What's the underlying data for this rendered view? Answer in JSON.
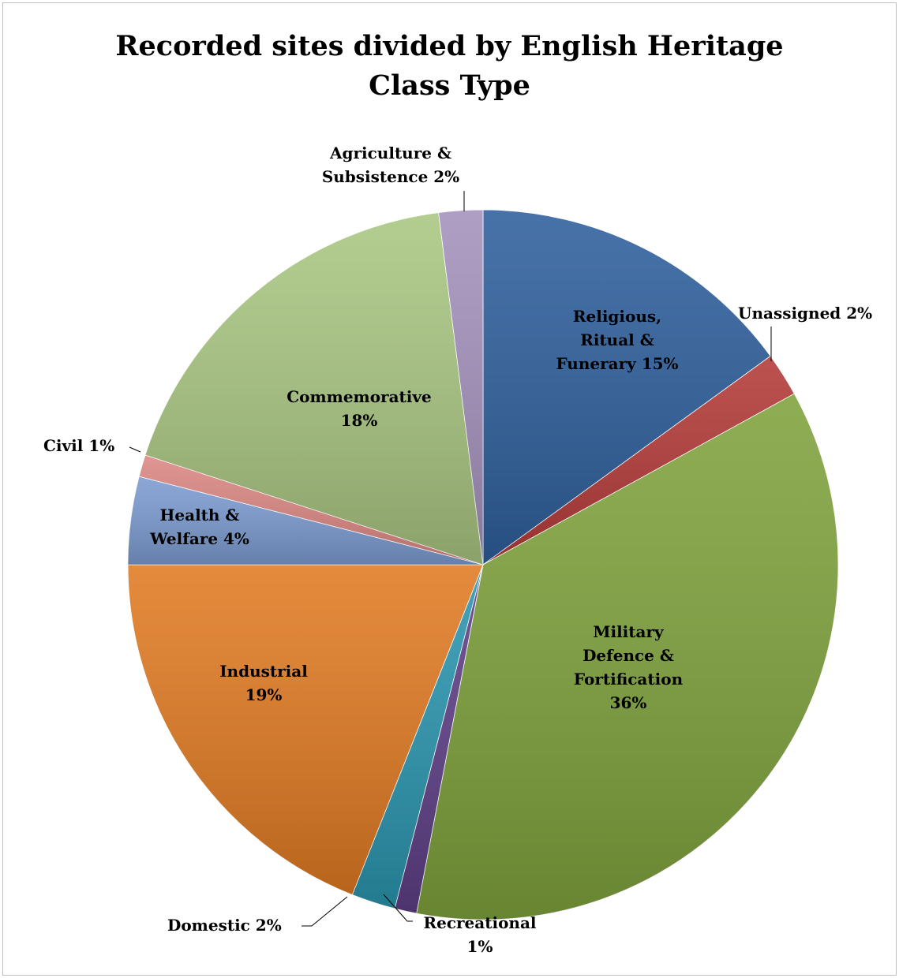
{
  "chart_data": {
    "type": "pie",
    "title": "Recorded sites divided by English Heritage Class Type",
    "title_lines": [
      "Recorded sites divided by English Heritage",
      "Class Type"
    ],
    "slices": [
      {
        "name": "Religious, Ritual & Funerary",
        "value": 15,
        "label_lines": [
          "Religious,",
          "Ritual &",
          "Funerary 15%"
        ],
        "color": "#2E5F9C"
      },
      {
        "name": "Unassigned",
        "value": 2,
        "label_lines": [
          "Unassigned 2%"
        ],
        "color": "#B33A38"
      },
      {
        "name": "Military Defence & Fortification",
        "value": 36,
        "label_lines": [
          "Military",
          "Defence &",
          "Fortification",
          "36%"
        ],
        "color": "#7FA23C"
      },
      {
        "name": "Recreational",
        "value": 1,
        "label_lines": [
          "Recreational",
          "1%"
        ],
        "color": "#5E3F86"
      },
      {
        "name": "Domestic",
        "value": 2,
        "label_lines": [
          "Domestic 2%"
        ],
        "color": "#2A95AE"
      },
      {
        "name": "Industrial",
        "value": 19,
        "label_lines": [
          "Industrial",
          "19%"
        ],
        "color": "#E07A22"
      },
      {
        "name": "Health & Welfare",
        "value": 4,
        "label_lines": [
          "Health &",
          "Welfare 4%"
        ],
        "color": "#7C9BD1"
      },
      {
        "name": "Civil",
        "value": 1,
        "label_lines": [
          "Civil 1%"
        ],
        "color": "#DB8782"
      },
      {
        "name": "Commemorative",
        "value": 18,
        "label_lines": [
          "Commemorative",
          "18%"
        ],
        "color": "#A9C681"
      },
      {
        "name": "Agriculture & Subsistence",
        "value": 2,
        "label_lines": [
          "Agriculture &",
          "Subsistence 2%"
        ],
        "color": "#A491BC"
      }
    ],
    "legend": "none",
    "label_color": "#000000"
  }
}
